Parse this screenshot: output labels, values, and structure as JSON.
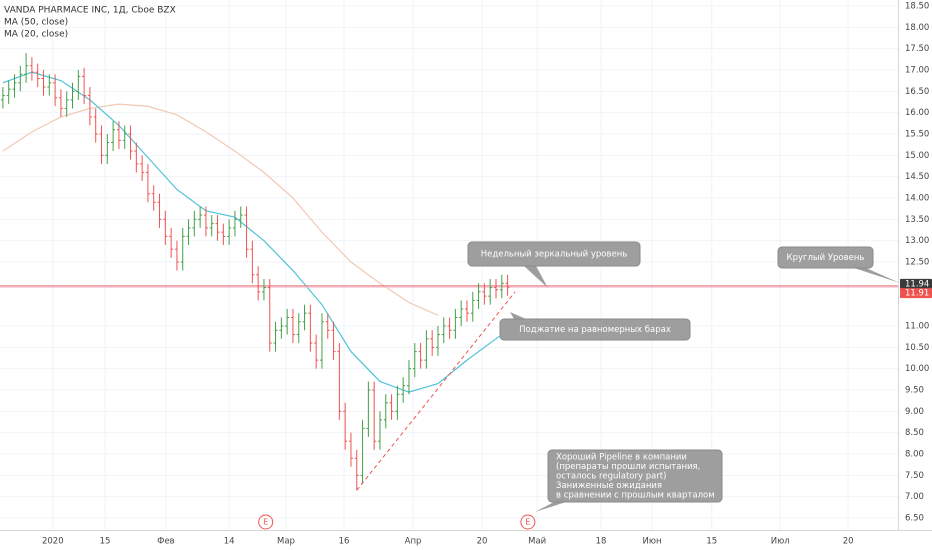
{
  "chart_data": {
    "type": "ohlc",
    "title": "VANDA PHARMACE INC, 1Д, Cboe BZX",
    "up_color": "#43a047",
    "down_color": "#ef5350",
    "open": [
      16.3,
      16.4,
      16.55,
      16.7,
      16.9,
      17.1,
      16.95,
      16.8,
      16.6,
      16.7,
      16.35,
      16.1,
      16.3,
      16.5,
      16.85,
      16.4,
      15.9,
      15.5,
      15.0,
      15.3,
      15.6,
      15.35,
      15.5,
      15.1,
      14.8,
      14.6,
      14.1,
      13.9,
      13.5,
      13.1,
      12.8,
      12.5,
      13.1,
      13.3,
      13.5,
      13.6,
      13.3,
      13.4,
      13.2,
      13.1,
      13.3,
      13.5,
      13.6,
      12.8,
      12.2,
      11.8,
      11.9,
      10.6,
      10.9,
      11.0,
      11.2,
      10.8,
      11.1,
      11.3,
      10.6,
      10.2,
      11.1,
      10.9,
      10.4,
      9.0,
      8.3,
      7.9,
      7.5,
      8.6,
      9.5,
      8.3,
      8.8,
      9.2,
      9.0,
      9.4,
      9.6,
      10.0,
      10.4,
      10.2,
      10.7,
      10.5,
      10.8,
      11.0,
      10.9,
      11.2,
      11.4,
      11.3,
      11.6,
      11.8,
      11.7,
      11.9,
      11.85,
      12.0
    ],
    "high": [
      16.6,
      16.75,
      16.9,
      17.1,
      17.4,
      17.3,
      17.15,
      17.0,
      16.9,
      16.9,
      16.55,
      16.5,
      16.7,
      17.0,
      17.05,
      16.6,
      16.1,
      15.7,
      15.5,
      15.8,
      15.8,
      15.7,
      15.7,
      15.3,
      15.0,
      14.8,
      14.3,
      14.1,
      13.7,
      13.3,
      13.0,
      13.3,
      13.5,
      13.7,
      13.8,
      13.8,
      13.6,
      13.6,
      13.4,
      13.5,
      13.7,
      13.8,
      13.8,
      13.0,
      12.4,
      12.1,
      12.1,
      11.1,
      11.2,
      11.4,
      11.4,
      11.3,
      11.5,
      11.5,
      10.8,
      11.3,
      11.3,
      11.1,
      10.6,
      9.2,
      8.5,
      8.1,
      8.8,
      9.7,
      9.7,
      9.0,
      9.4,
      9.4,
      9.6,
      9.8,
      10.2,
      10.6,
      10.6,
      10.9,
      10.9,
      11.0,
      11.2,
      11.2,
      11.4,
      11.6,
      11.6,
      11.8,
      12.0,
      12.0,
      12.1,
      12.1,
      12.2,
      12.2
    ],
    "low": [
      16.1,
      16.2,
      16.35,
      16.5,
      16.7,
      16.75,
      16.6,
      16.4,
      16.4,
      16.15,
      15.9,
      15.9,
      16.1,
      16.3,
      16.2,
      15.7,
      15.3,
      14.8,
      14.8,
      15.1,
      15.15,
      15.15,
      14.9,
      14.6,
      14.4,
      13.9,
      13.7,
      13.3,
      12.9,
      12.6,
      12.3,
      12.3,
      12.9,
      13.1,
      13.3,
      13.1,
      13.1,
      13.0,
      12.9,
      12.9,
      13.1,
      13.3,
      12.6,
      12.0,
      11.6,
      11.6,
      10.4,
      10.4,
      10.7,
      10.8,
      10.6,
      10.6,
      10.9,
      10.4,
      10.0,
      10.0,
      10.7,
      10.2,
      8.8,
      8.1,
      7.7,
      7.15,
      7.3,
      8.4,
      8.1,
      8.1,
      8.6,
      8.8,
      8.8,
      9.2,
      9.4,
      9.8,
      10.0,
      10.0,
      10.3,
      10.3,
      10.6,
      10.7,
      10.7,
      11.0,
      11.1,
      11.1,
      11.4,
      11.5,
      11.5,
      11.65,
      11.65,
      11.71
    ],
    "close": [
      16.4,
      16.55,
      16.7,
      16.9,
      17.1,
      16.95,
      16.8,
      16.6,
      16.7,
      16.35,
      16.1,
      16.3,
      16.5,
      16.85,
      16.4,
      15.9,
      15.5,
      15.0,
      15.3,
      15.6,
      15.35,
      15.5,
      15.1,
      14.8,
      14.6,
      14.1,
      13.9,
      13.5,
      13.1,
      12.8,
      12.5,
      13.1,
      13.3,
      13.5,
      13.6,
      13.3,
      13.4,
      13.2,
      13.1,
      13.3,
      13.5,
      13.6,
      12.8,
      12.2,
      11.8,
      11.9,
      10.6,
      10.9,
      11.0,
      11.2,
      10.8,
      11.1,
      11.3,
      10.6,
      10.2,
      11.1,
      10.9,
      10.4,
      9.0,
      8.3,
      7.9,
      7.5,
      8.6,
      9.5,
      8.3,
      8.8,
      9.2,
      9.0,
      9.4,
      9.6,
      10.0,
      10.4,
      10.2,
      10.7,
      10.5,
      10.8,
      11.0,
      10.9,
      11.2,
      11.4,
      11.3,
      11.6,
      11.8,
      11.7,
      11.9,
      11.85,
      12.0,
      11.91
    ],
    "series": [
      {
        "name": "MA (50, close)",
        "color": "#f3c8b4",
        "x": [
          0,
          5,
          10,
          15,
          20,
          25,
          30,
          35,
          40,
          45,
          50,
          55,
          60,
          65,
          70,
          75
        ],
        "values": [
          15.1,
          15.55,
          15.9,
          16.1,
          16.2,
          16.15,
          15.95,
          15.55,
          15.1,
          14.6,
          14.0,
          13.2,
          12.5,
          12.0,
          11.55,
          11.25
        ]
      },
      {
        "name": "MA (20, close)",
        "color": "#4fc3d7",
        "x": [
          0,
          5,
          10,
          15,
          20,
          25,
          30,
          35,
          40,
          45,
          50,
          55,
          60,
          65,
          70,
          75,
          80,
          85,
          87
        ],
        "values": [
          16.7,
          16.95,
          16.75,
          16.3,
          15.7,
          14.95,
          14.2,
          13.7,
          13.55,
          13.0,
          12.3,
          11.5,
          10.4,
          9.7,
          9.45,
          9.65,
          10.2,
          10.7,
          10.9
        ]
      }
    ],
    "xlim": [
      -0.5,
      154.3
    ],
    "xticks": [
      {
        "value": 8.6,
        "label": "2020"
      },
      {
        "value": 17.6,
        "label": "15"
      },
      {
        "value": 28.1,
        "label": "Фев"
      },
      {
        "value": 39,
        "label": "14"
      },
      {
        "value": 48.8,
        "label": "Мар"
      },
      {
        "value": 58.8,
        "label": "16"
      },
      {
        "value": 70.7,
        "label": "Апр"
      },
      {
        "value": 82.6,
        "label": "20"
      },
      {
        "value": 92.1,
        "label": "Май"
      },
      {
        "value": 103.1,
        "label": "18"
      },
      {
        "value": 111.9,
        "label": "Июн"
      },
      {
        "value": 122.2,
        "label": "15"
      },
      {
        "value": 134,
        "label": "Июл"
      },
      {
        "value": 145.7,
        "label": "20"
      }
    ],
    "ylim": [
      6.5,
      18.5
    ],
    "yticks": [
      {
        "value": 6.5,
        "label": "6.50"
      },
      {
        "value": 7,
        "label": "7.00"
      },
      {
        "value": 7.5,
        "label": "7.50"
      },
      {
        "value": 8,
        "label": "8.00"
      },
      {
        "value": 8.5,
        "label": "8.50"
      },
      {
        "value": 9,
        "label": "9.00"
      },
      {
        "value": 9.5,
        "label": "9.50"
      },
      {
        "value": 10,
        "label": "10.00"
      },
      {
        "value": 10.5,
        "label": "10.50"
      },
      {
        "value": 11,
        "label": "11.00"
      },
      {
        "value": 12.5,
        "label": "12.50"
      },
      {
        "value": 13,
        "label": "13.00"
      },
      {
        "value": 13.5,
        "label": "13.50"
      },
      {
        "value": 14,
        "label": "14.00"
      },
      {
        "value": 14.5,
        "label": "14.50"
      },
      {
        "value": 15,
        "label": "15.00"
      },
      {
        "value": 15.5,
        "label": "15.50"
      },
      {
        "value": 16,
        "label": "16.00"
      },
      {
        "value": 16.5,
        "label": "16.50"
      },
      {
        "value": 17,
        "label": "17.00"
      },
      {
        "value": 17.5,
        "label": "17.50"
      },
      {
        "value": 18,
        "label": "18.00"
      },
      {
        "value": 18.5,
        "label": "18.50"
      }
    ],
    "grid": true,
    "hlines": [
      {
        "value": 11.94,
        "color": "#e57373",
        "tag_color": "#3a3a3a"
      },
      {
        "value": 11.91,
        "color": "#f8bbd0",
        "tag_color": "#ef5350"
      }
    ],
    "trendline": {
      "x": [
        61,
        88.3
      ],
      "values": [
        7.15,
        11.8
      ],
      "color": "#ef5350"
    },
    "events": [
      {
        "x": 45.3,
        "label": "E"
      },
      {
        "x": 90.5,
        "label": "E"
      }
    ],
    "callouts": [
      {
        "lines": [
          "Недельный зеркальный уровень"
        ]
      },
      {
        "lines": [
          "Круглый Уровень"
        ]
      },
      {
        "lines": [
          "Поджатие на равномерных барах"
        ]
      },
      {
        "lines": [
          "Хороший Pipeline в компании",
          "(препараты прошли испытания,",
          "осталось regulatory part)",
          "Заниженные ожидания",
          "в сравнении с прошлым кварталом"
        ]
      }
    ]
  }
}
